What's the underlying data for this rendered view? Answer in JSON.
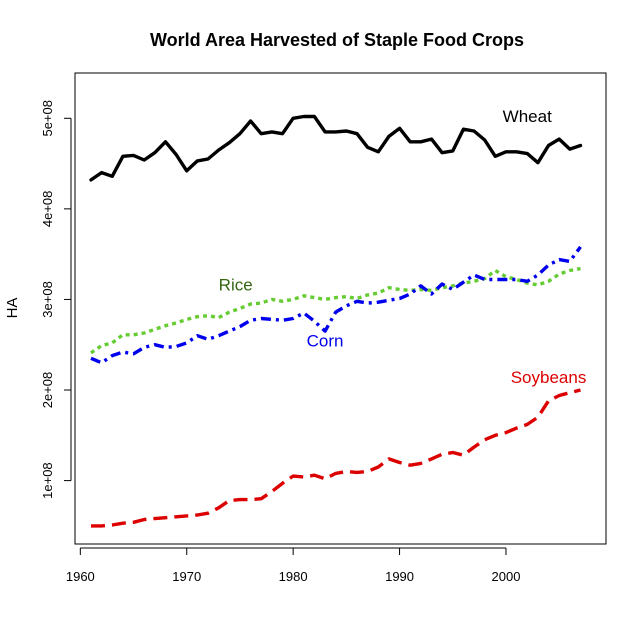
{
  "chart_data": {
    "type": "line",
    "title": "World Area Harvested of Staple Food Crops",
    "xlabel": "",
    "ylabel": "HA",
    "xlim": [
      1959.5,
      2009.4
    ],
    "ylim": [
      30000000,
      550000000
    ],
    "x_ticks": [
      1960,
      1970,
      1980,
      1990,
      2000
    ],
    "x_tick_labels": [
      "1960",
      "1970",
      "1980",
      "1990",
      "2000"
    ],
    "y_ticks": [
      100000000,
      200000000,
      300000000,
      400000000,
      500000000
    ],
    "y_tick_labels": [
      "1e+08",
      "2e+08",
      "3e+08",
      "4e+08",
      "5e+08"
    ],
    "grid": false,
    "x": [
      1961,
      1962,
      1963,
      1964,
      1965,
      1966,
      1967,
      1968,
      1969,
      1970,
      1971,
      1972,
      1973,
      1974,
      1975,
      1976,
      1977,
      1978,
      1979,
      1980,
      1981,
      1982,
      1983,
      1984,
      1985,
      1986,
      1987,
      1988,
      1989,
      1990,
      1991,
      1992,
      1993,
      1994,
      1995,
      1996,
      1997,
      1998,
      1999,
      2000,
      2001,
      2002,
      2003,
      2004,
      2005,
      2006,
      2007
    ],
    "series": [
      {
        "name": "Wheat",
        "color": "#000000",
        "dash": "solid",
        "label_x": 2002,
        "label_y": 496000000,
        "values": [
          432000000,
          440000000,
          436000000,
          458000000,
          459000000,
          454000000,
          462000000,
          474000000,
          460000000,
          442000000,
          453000000,
          455000000,
          465000000,
          473000000,
          483000000,
          497000000,
          483000000,
          485000000,
          483000000,
          500000000,
          502000000,
          502000000,
          485000000,
          485000000,
          486000000,
          483000000,
          468000000,
          463000000,
          480000000,
          489000000,
          474000000,
          474000000,
          477000000,
          462000000,
          464000000,
          488000000,
          486000000,
          476000000,
          458000000,
          463000000,
          463000000,
          461000000,
          451000000,
          470000000,
          477000000,
          466000000,
          470000000
        ]
      },
      {
        "name": "Rice",
        "color": "#66cc33",
        "label_color": "#336611",
        "dash": "dotted",
        "label_x": 1974.6,
        "label_y": 310000000,
        "values": [
          241000000,
          249000000,
          252000000,
          261000000,
          261000000,
          263000000,
          267000000,
          271000000,
          274000000,
          278000000,
          281000000,
          282000000,
          280000000,
          286000000,
          290000000,
          295000000,
          296000000,
          300000000,
          298000000,
          300000000,
          304000000,
          302000000,
          300000000,
          302000000,
          303000000,
          301000000,
          305000000,
          307000000,
          313000000,
          311000000,
          310000000,
          311000000,
          310000000,
          313000000,
          315000000,
          318000000,
          320000000,
          323000000,
          332000000,
          325000000,
          322000000,
          318000000,
          316000000,
          320000000,
          328000000,
          332000000,
          334000000
        ]
      },
      {
        "name": "Corn",
        "color": "#0000ee",
        "dash": "dashdot",
        "label_x": 1983,
        "label_y": 248000000,
        "values": [
          235000000,
          230000000,
          238000000,
          242000000,
          240000000,
          247000000,
          250000000,
          247000000,
          248000000,
          252000000,
          260000000,
          256000000,
          260000000,
          265000000,
          270000000,
          277000000,
          279000000,
          278000000,
          277000000,
          279000000,
          285000000,
          276000000,
          265000000,
          286000000,
          293000000,
          298000000,
          296000000,
          297000000,
          299000000,
          301000000,
          306000000,
          315000000,
          306000000,
          317000000,
          311000000,
          319000000,
          327000000,
          322000000,
          322000000,
          322000000,
          322000000,
          320000000,
          327000000,
          338000000,
          344000000,
          342000000,
          358000000
        ]
      },
      {
        "name": "Soybeans",
        "color": "#dd0000",
        "dash": "dashed",
        "label_x": 2004,
        "label_y": 208000000,
        "values": [
          50000000,
          50000000,
          51000000,
          53000000,
          54000000,
          57000000,
          58000000,
          59000000,
          60000000,
          61000000,
          62000000,
          64000000,
          70000000,
          78000000,
          79000000,
          79000000,
          80000000,
          88000000,
          97000000,
          105000000,
          104000000,
          106000000,
          102000000,
          108000000,
          110000000,
          109000000,
          110000000,
          115000000,
          124000000,
          120000000,
          117000000,
          119000000,
          124000000,
          129000000,
          131000000,
          128000000,
          137000000,
          145000000,
          150000000,
          153000000,
          158000000,
          162000000,
          170000000,
          188000000,
          194000000,
          197000000,
          200000000
        ]
      }
    ]
  }
}
